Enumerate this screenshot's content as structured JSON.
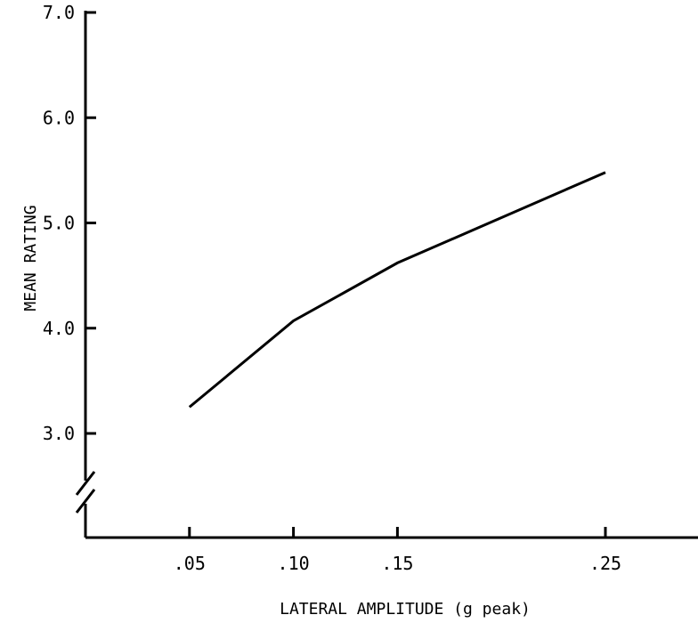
{
  "chart_data": {
    "type": "line",
    "title": "",
    "xlabel": "LATERAL AMPLITUDE (g peak)",
    "ylabel": "MEAN RATING",
    "x_ticks": [
      {
        "value": 0.05,
        "label": ".05"
      },
      {
        "value": 0.1,
        "label": ".10"
      },
      {
        "value": 0.15,
        "label": ".15"
      },
      {
        "value": 0.25,
        "label": ".25"
      }
    ],
    "y_ticks": [
      {
        "value": 3.0,
        "label": "3.0"
      },
      {
        "value": 4.0,
        "label": "4.0"
      },
      {
        "value": 5.0,
        "label": "5.0"
      },
      {
        "value": 6.0,
        "label": "6.0"
      },
      {
        "value": 7.0,
        "label": "7.0"
      }
    ],
    "x": [
      0.05,
      0.1,
      0.15,
      0.25
    ],
    "series": [
      {
        "values": [
          3.25,
          4.07,
          4.62,
          5.48
        ]
      }
    ],
    "xlim": [
      0.0,
      0.3
    ],
    "ylim": [
      3.0,
      7.0
    ],
    "y_axis_break": true,
    "grid": false,
    "line_color": "#000000"
  }
}
